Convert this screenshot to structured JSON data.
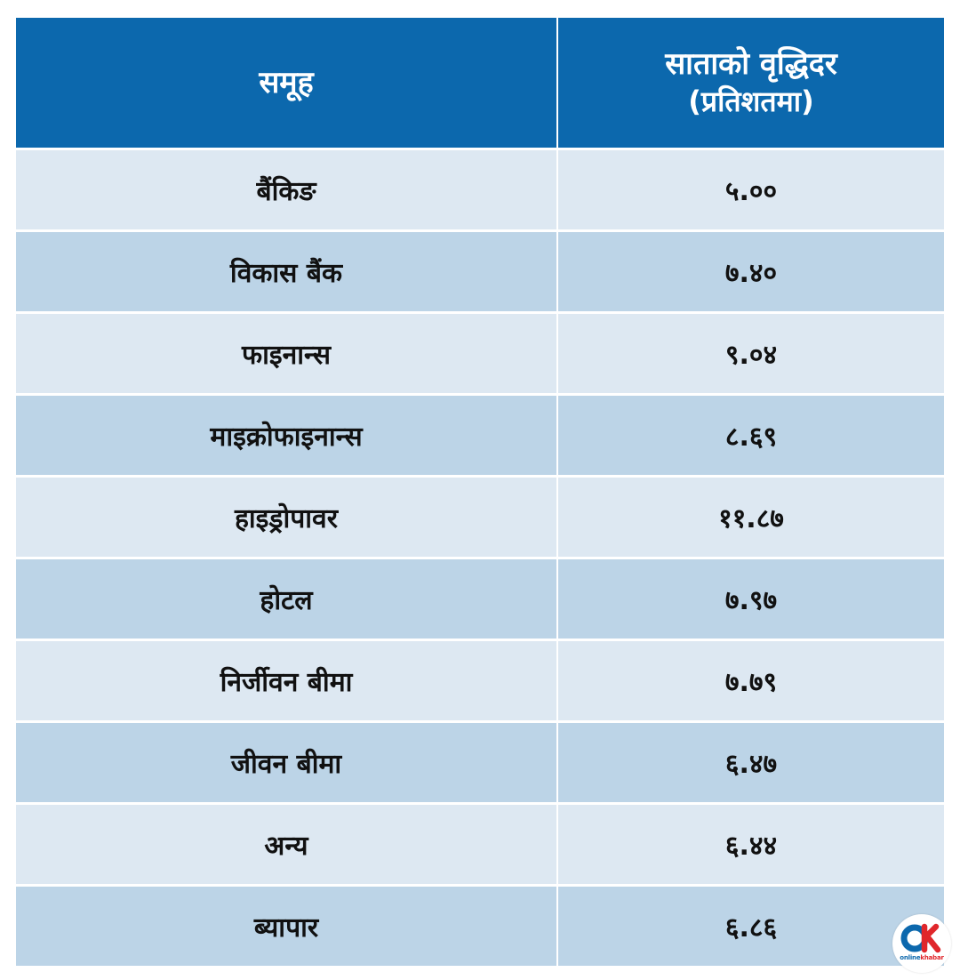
{
  "header": {
    "col1": "समूह",
    "col2_line1": "साताको वृद्धिदर",
    "col2_line2": "(प्रतिशतमा)"
  },
  "rows": [
    {
      "group": "बैंकिङ",
      "rate": "५.००"
    },
    {
      "group": "विकास बैंक",
      "rate": "७.४०"
    },
    {
      "group": "फाइनान्स",
      "rate": "९.०४"
    },
    {
      "group": "माइक्रोफाइनान्स",
      "rate": "८.६९"
    },
    {
      "group": "हाइड्रोपावर",
      "rate": "११.८७"
    },
    {
      "group": "होटल",
      "rate": "७.९७"
    },
    {
      "group": "निर्जीवन बीमा",
      "rate": "७.७९"
    },
    {
      "group": "जीवन बीमा",
      "rate": "६.४७"
    },
    {
      "group": "अन्य",
      "rate": "६.४४"
    },
    {
      "group": "ब्यापार",
      "rate": "६.८६"
    }
  ],
  "logo": {
    "icon": "onlinekhabar-ok-logo-icon",
    "text_main": "online",
    "text_accent": "khabar",
    "brand_blue": "#0c68ad",
    "brand_red": "#e0262b"
  },
  "colors": {
    "header_bg": "#0c68ad",
    "row_light": "#dde8f2",
    "row_dark": "#bcd4e7"
  }
}
